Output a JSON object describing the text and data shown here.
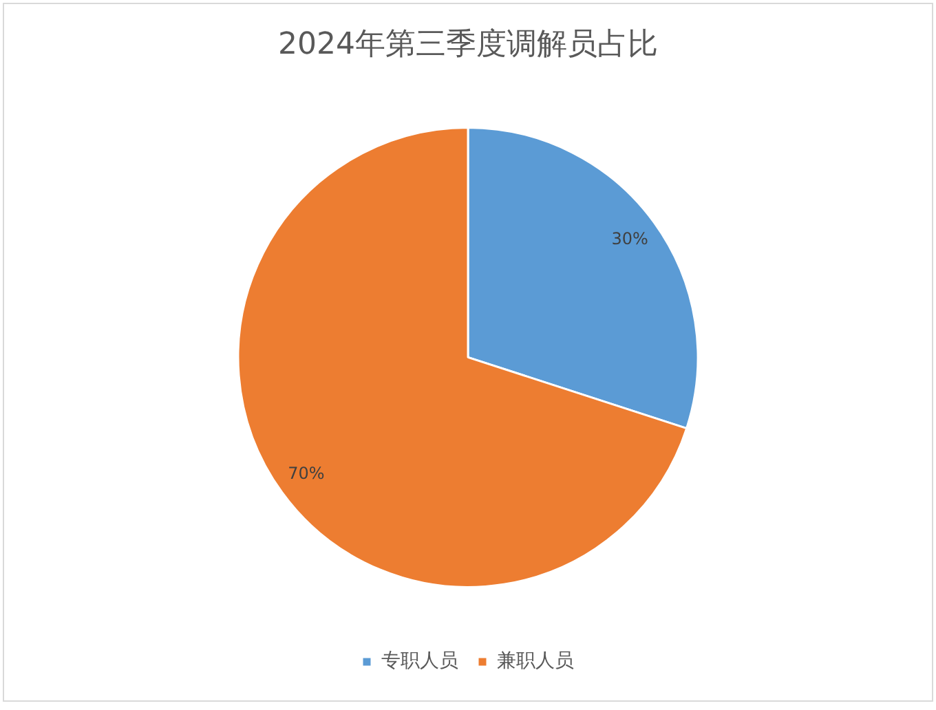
{
  "chart_data": {
    "type": "pie",
    "title": "2024年第三季度调解员占比",
    "categories": [
      "专职人员",
      "兼职人员"
    ],
    "values": [
      30,
      70
    ],
    "colors": [
      "#5b9bd5",
      "#ed7d31"
    ],
    "value_labels": [
      "30%",
      "70%"
    ],
    "legend": "bottom"
  }
}
